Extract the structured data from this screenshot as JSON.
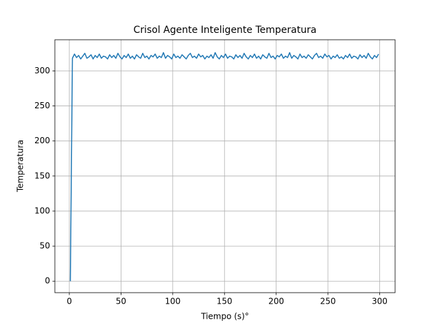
{
  "chart_data": {
    "type": "line",
    "title": "Crisol Agente Inteligente Temperatura",
    "xlabel": "Tiempo (s)°",
    "ylabel": "Temperatura",
    "color": "#1f77b4",
    "grid": true,
    "xlim": [
      -13.95,
      314.95
    ],
    "ylim": [
      -16.4,
      344.4
    ],
    "xticks": [
      0,
      50,
      100,
      150,
      200,
      250,
      300
    ],
    "yticks": [
      0,
      50,
      100,
      150,
      200,
      250,
      300
    ],
    "x": [
      1,
      3,
      5,
      7,
      9,
      11,
      13,
      15,
      17,
      19,
      21,
      23,
      25,
      27,
      29,
      31,
      33,
      35,
      37,
      39,
      41,
      43,
      45,
      47,
      49,
      51,
      53,
      55,
      57,
      59,
      61,
      63,
      65,
      67,
      69,
      71,
      73,
      75,
      77,
      79,
      81,
      83,
      85,
      87,
      89,
      91,
      93,
      95,
      97,
      99,
      101,
      103,
      105,
      107,
      109,
      111,
      113,
      115,
      117,
      119,
      121,
      123,
      125,
      127,
      129,
      131,
      133,
      135,
      137,
      139,
      141,
      143,
      145,
      147,
      149,
      151,
      153,
      155,
      157,
      159,
      161,
      163,
      165,
      167,
      169,
      171,
      173,
      175,
      177,
      179,
      181,
      183,
      185,
      187,
      189,
      191,
      193,
      195,
      197,
      199,
      201,
      203,
      205,
      207,
      209,
      211,
      213,
      215,
      217,
      219,
      221,
      223,
      225,
      227,
      229,
      231,
      233,
      235,
      237,
      239,
      241,
      243,
      245,
      247,
      249,
      251,
      253,
      255,
      257,
      259,
      261,
      263,
      265,
      267,
      269,
      271,
      273,
      275,
      277,
      279,
      281,
      283,
      285,
      287,
      289,
      291,
      293,
      295,
      297,
      299
    ],
    "values": [
      0,
      318,
      324,
      319,
      322,
      317,
      321,
      325,
      318,
      320,
      323,
      317,
      322,
      319,
      324,
      318,
      321,
      320,
      317,
      323,
      319,
      322,
      318,
      325,
      320,
      317,
      322,
      319,
      324,
      318,
      321,
      317,
      323,
      320,
      318,
      325,
      319,
      321,
      317,
      322,
      320,
      324,
      318,
      321,
      319,
      326,
      318,
      322,
      320,
      317,
      324,
      319,
      321,
      318,
      323,
      320,
      317,
      322,
      325,
      319,
      321,
      318,
      324,
      320,
      322,
      317,
      321,
      319,
      323,
      318,
      326,
      320,
      317,
      322,
      319,
      324,
      318,
      321,
      320,
      317,
      323,
      319,
      322,
      318,
      325,
      320,
      317,
      322,
      319,
      324,
      318,
      321,
      317,
      323,
      320,
      318,
      325,
      319,
      321,
      317,
      322,
      320,
      324,
      318,
      321,
      319,
      326,
      318,
      322,
      320,
      317,
      324,
      319,
      321,
      318,
      323,
      320,
      317,
      322,
      325,
      319,
      321,
      318,
      324,
      320,
      322,
      317,
      321,
      319,
      323,
      318,
      320,
      317,
      322,
      319,
      324,
      318,
      321,
      320,
      317,
      323,
      319,
      322,
      318,
      325,
      320,
      317,
      322,
      319,
      324
    ]
  }
}
